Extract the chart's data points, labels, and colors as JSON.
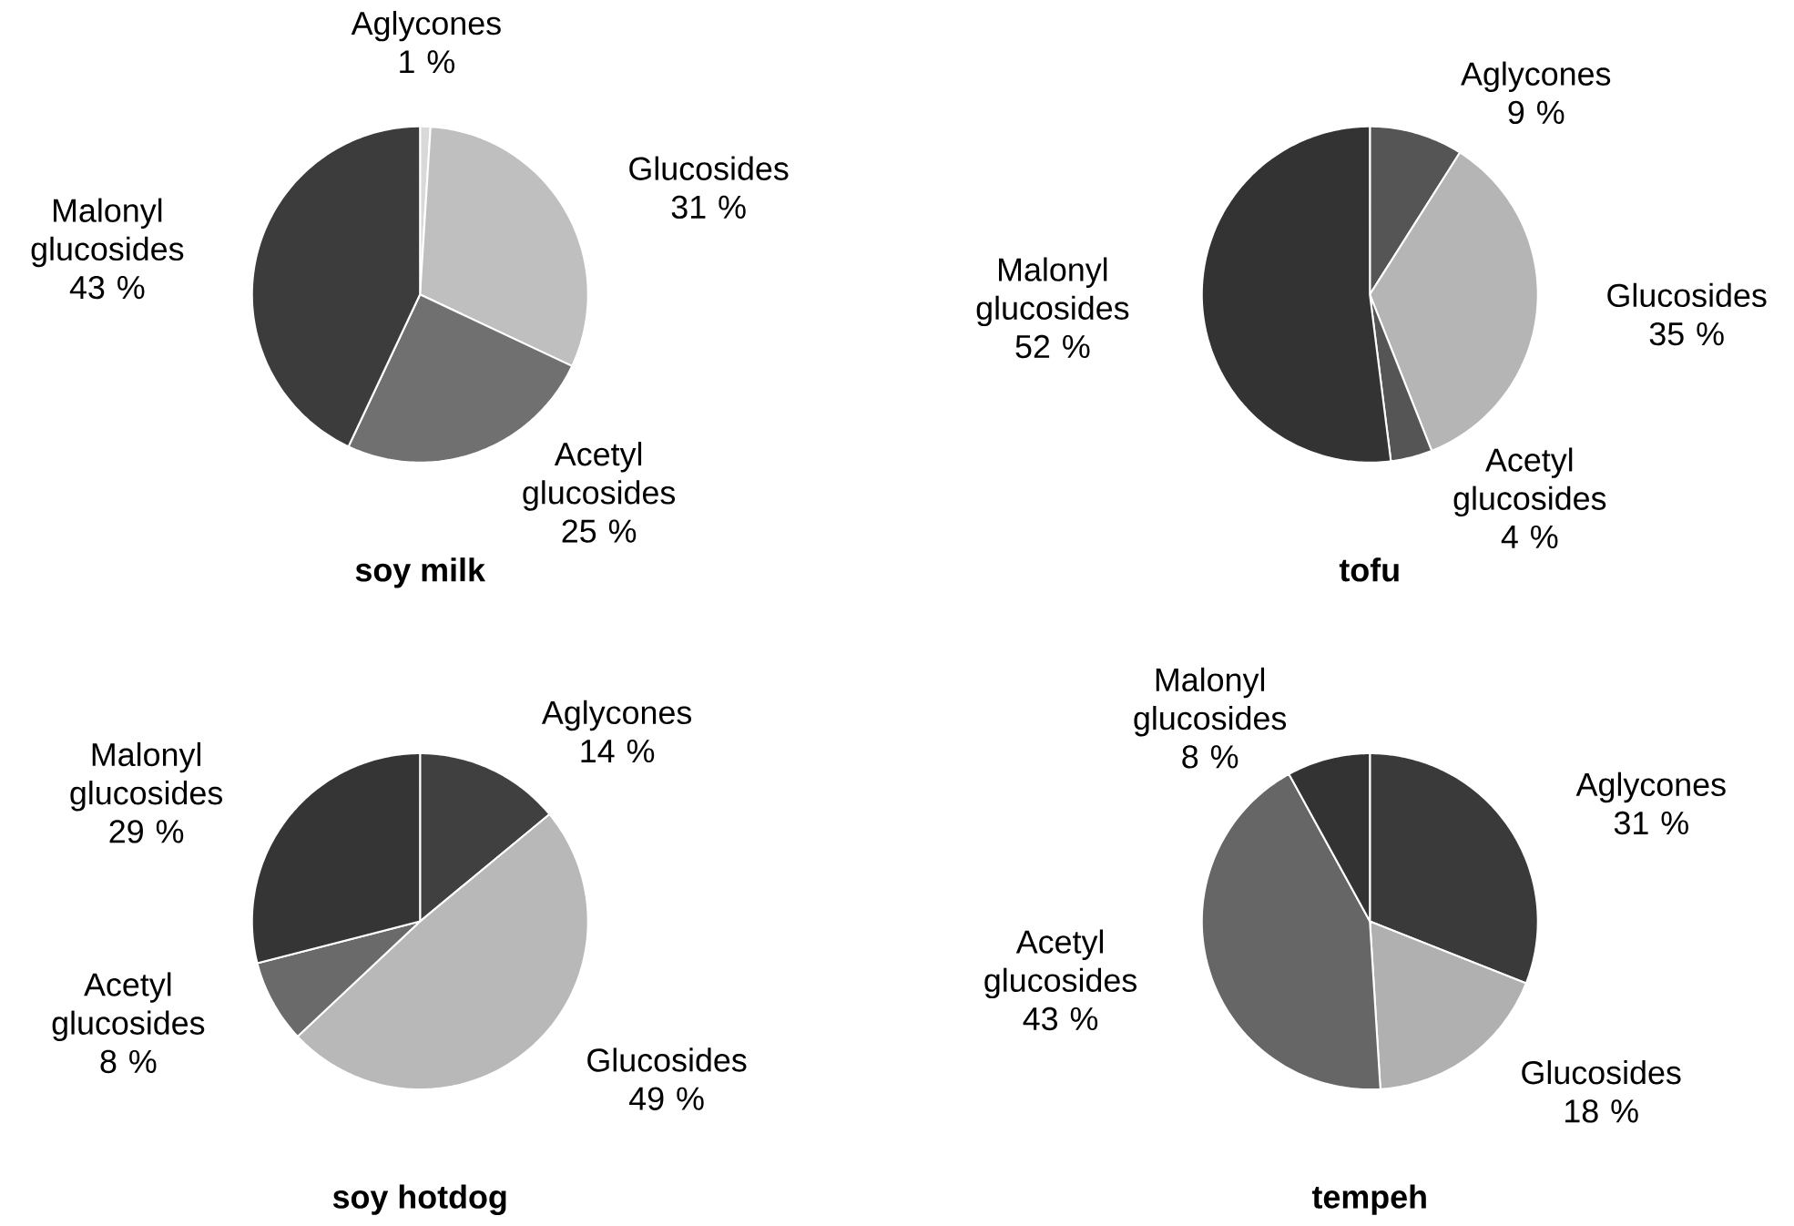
{
  "chart_data": [
    {
      "type": "pie",
      "title": "soy milk",
      "categories": [
        "Aglycones",
        "Glucosides",
        "Acetyl glucosides",
        "Malonyl glucosides"
      ],
      "values": [
        1,
        31,
        25,
        43
      ],
      "value_labels": [
        "1 %",
        "31 %",
        "25 %",
        "43 %"
      ],
      "colors": [
        "#d9d9d9",
        "#bfbfbf",
        "#707070",
        "#3c3c3c"
      ]
    },
    {
      "type": "pie",
      "title": "tofu",
      "categories": [
        "Aglycones",
        "Glucosides",
        "Acetyl glucosides",
        "Malonyl glucosides"
      ],
      "values": [
        9,
        35,
        4,
        52
      ],
      "value_labels": [
        "9 %",
        "35 %",
        "4 %",
        "52 %"
      ],
      "colors": [
        "#555555",
        "#b5b5b5",
        "#555555",
        "#333333"
      ]
    },
    {
      "type": "pie",
      "title": "soy hotdog",
      "categories": [
        "Aglycones",
        "Glucosides",
        "Acetyl glucosides",
        "Malonyl glucosides"
      ],
      "values": [
        14,
        49,
        8,
        29
      ],
      "value_labels": [
        "14 %",
        "49 %",
        "8 %",
        "29 %"
      ],
      "colors": [
        "#404040",
        "#b8b8b8",
        "#6a6a6a",
        "#353535"
      ]
    },
    {
      "type": "pie",
      "title": "tempeh",
      "categories": [
        "Aglycones",
        "Glucosides",
        "Acetyl glucosides",
        "Malonyl glucosides"
      ],
      "values": [
        31,
        18,
        43,
        8
      ],
      "value_labels": [
        "31 %",
        "18 %",
        "43 %",
        "8 %"
      ],
      "colors": [
        "#3a3a3a",
        "#b0b0b0",
        "#666666",
        "#333333"
      ]
    }
  ]
}
